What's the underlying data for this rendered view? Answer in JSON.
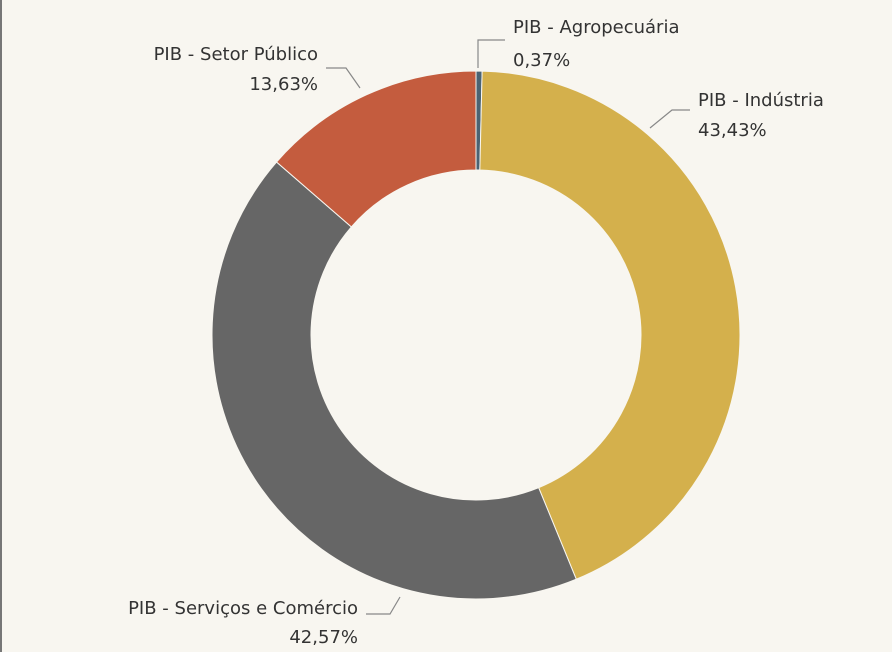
{
  "chart_data": {
    "type": "donut",
    "categories": [
      "PIB - Agropecuária",
      "PIB - Indústria",
      "PIB - Serviços e Comércio",
      "PIB - Setor Público"
    ],
    "values": [
      0.37,
      43.43,
      42.57,
      13.63
    ],
    "value_labels": [
      "0,37%",
      "43,43%",
      "42,57%",
      "13,63%"
    ],
    "colors": [
      "#4b6373",
      "#d4b04c",
      "#666666",
      "#c45c3e"
    ]
  }
}
